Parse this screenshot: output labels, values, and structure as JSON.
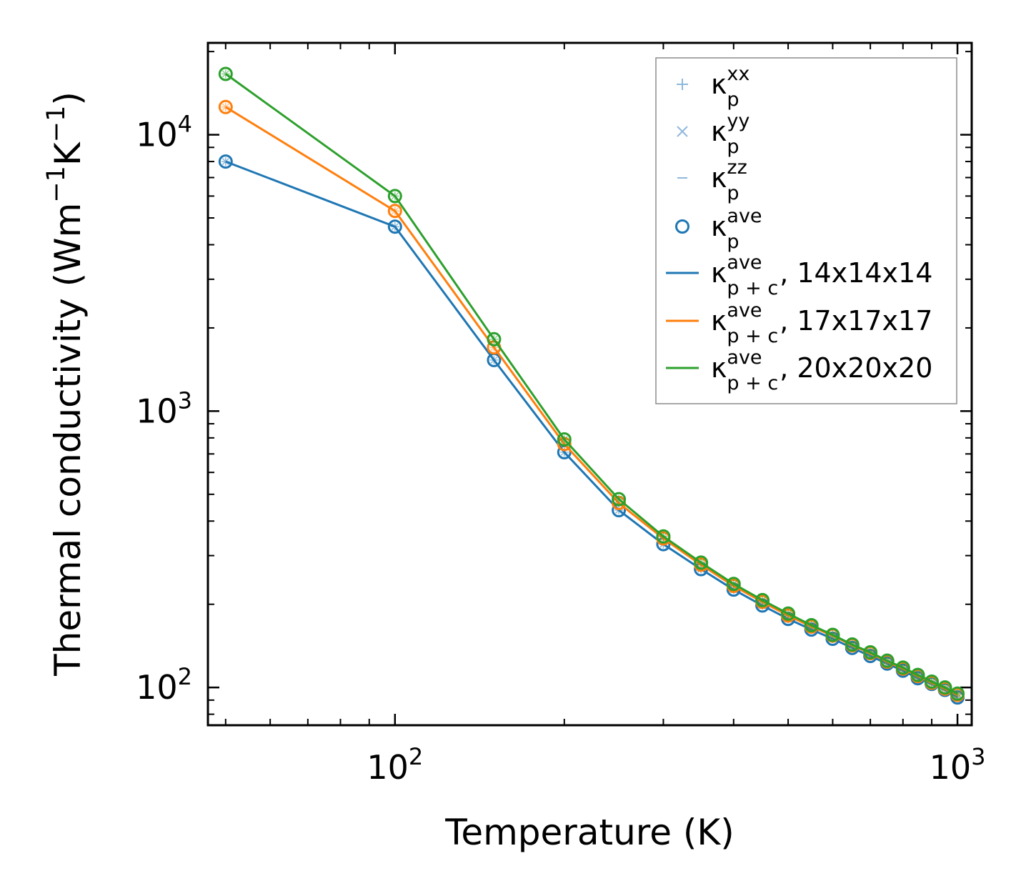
{
  "chart_data": {
    "type": "line",
    "xscale": "log",
    "yscale": "log",
    "xlim": [
      46.5,
      1060
    ],
    "ylim": [
      73,
      21500
    ],
    "xlabel": "Temperature (K)",
    "ylabel": {
      "prefix": "Thermal conductivity (Wm",
      "sup1": "−1",
      "mid": "K",
      "sup2": "−1",
      "suffix": ")"
    },
    "x_major_ticks": [
      {
        "value": 100,
        "base": "10",
        "exp": "2"
      },
      {
        "value": 1000,
        "base": "10",
        "exp": "3"
      }
    ],
    "y_major_ticks": [
      {
        "value": 100,
        "base": "10",
        "exp": "2"
      },
      {
        "value": 1000,
        "base": "10",
        "exp": "3"
      },
      {
        "value": 10000,
        "base": "10",
        "exp": "4"
      }
    ],
    "x": [
      50,
      100,
      150,
      200,
      250,
      300,
      350,
      400,
      450,
      500,
      550,
      600,
      650,
      700,
      750,
      800,
      850,
      900,
      950,
      1000
    ],
    "series": [
      {
        "name": "κp+c ave, 14x14x14",
        "color": "#1f77b4",
        "values": [
          8000,
          4650,
          1530,
          710,
          438,
          330,
          268,
          226,
          198,
          177,
          162,
          150,
          139,
          130,
          122,
          115,
          108,
          103,
          98,
          92
        ]
      },
      {
        "name": "κp+c ave, 17x17x17",
        "color": "#ff7f0e",
        "values": [
          12600,
          5300,
          1700,
          760,
          465,
          346,
          278,
          233,
          204,
          182,
          166,
          154,
          142,
          133,
          124,
          117,
          110,
          104,
          99,
          94
        ]
      },
      {
        "name": "κp+c ave, 20x20x20",
        "color": "#2ca02c",
        "values": [
          16600,
          6000,
          1820,
          790,
          480,
          352,
          283,
          237,
          207,
          185,
          168,
          155,
          143,
          134,
          125,
          118,
          111,
          105,
          100,
          95
        ]
      }
    ],
    "legend": {
      "position": "top-right",
      "entries": [
        {
          "kind": "plus",
          "color": "#8fb8dc",
          "base": "κ",
          "sup": "xx",
          "sub": "p",
          "text": ""
        },
        {
          "kind": "cross",
          "color": "#8fb8dc",
          "base": "κ",
          "sup": "yy",
          "sub": "p",
          "text": ""
        },
        {
          "kind": "dash",
          "color": "#8fb8dc",
          "base": "κ",
          "sup": "zz",
          "sub": "p",
          "text": ""
        },
        {
          "kind": "circle",
          "color": "#1f77b4",
          "base": "κ",
          "sup": "ave",
          "sub": "p",
          "text": ""
        },
        {
          "kind": "line",
          "color": "#1f77b4",
          "base": "κ",
          "sup": "ave",
          "sub": "p + c",
          "text": ", 14x14x14"
        },
        {
          "kind": "line",
          "color": "#ff7f0e",
          "base": "κ",
          "sup": "ave",
          "sub": "p + c",
          "text": ", 17x17x17"
        },
        {
          "kind": "line",
          "color": "#2ca02c",
          "base": "κ",
          "sup": "ave",
          "sub": "p + c",
          "text": ", 20x20x20"
        }
      ]
    }
  }
}
